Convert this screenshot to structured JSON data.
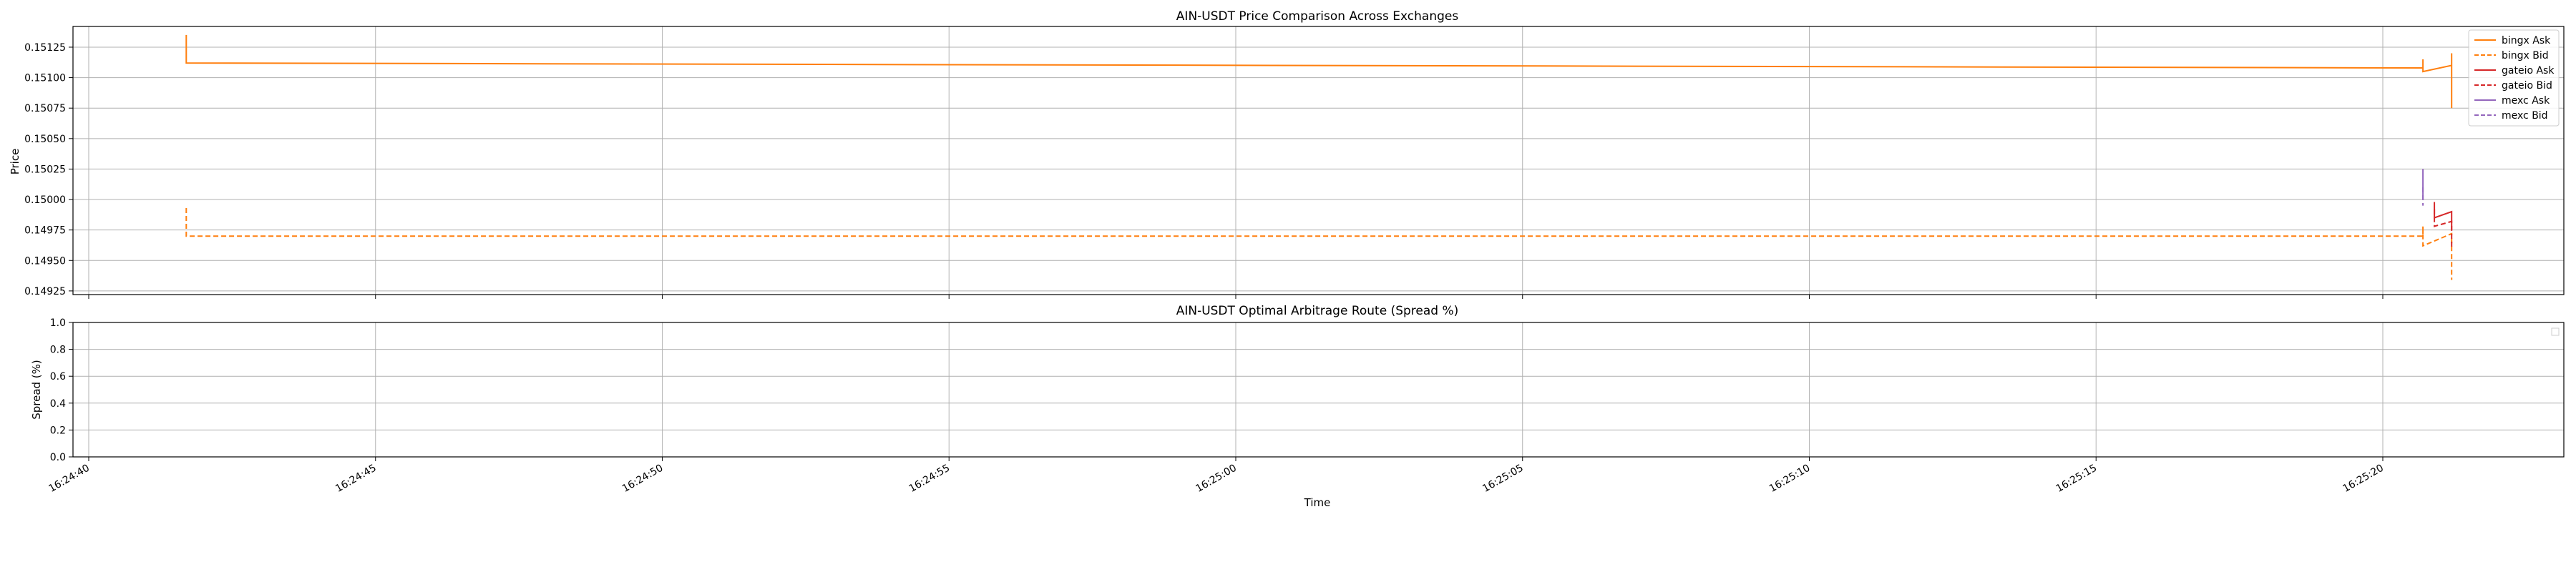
{
  "chart_data": [
    {
      "type": "line",
      "title": "AIN-USDT Price Comparison Across Exchanges",
      "xlabel": "",
      "ylabel": "Price",
      "grid": true,
      "legend_placement": "upper-right",
      "xlim": [
        "16:24:40",
        "16:25:24"
      ],
      "ylim": [
        0.14922,
        0.15142
      ],
      "yticks": [
        "0.14925",
        "0.14950",
        "0.14975",
        "0.15000",
        "0.15025",
        "0.15050",
        "0.15075",
        "0.15100",
        "0.15125"
      ],
      "series": [
        {
          "name": "bingx Ask",
          "color": "#ff7f0e",
          "dash": "solid",
          "x": [
            "16:24:41.7",
            "16:24:41.7",
            "16:24:41.7",
            "16:25:20.7",
            "16:25:20.7",
            "16:25:20.7",
            "16:25:21.2",
            "16:25:21.2",
            "16:25:21.2"
          ],
          "y": [
            0.15135,
            0.1512,
            0.15112,
            0.15108,
            0.15115,
            0.15105,
            0.1511,
            0.1512,
            0.15075
          ]
        },
        {
          "name": "bingx Bid",
          "color": "#ff7f0e",
          "dash": "dashed",
          "x": [
            "16:24:41.7",
            "16:24:41.7",
            "16:24:41.7",
            "16:25:20.7",
            "16:25:20.7",
            "16:25:20.7",
            "16:25:21.2",
            "16:25:21.2",
            "16:25:21.2"
          ],
          "y": [
            0.14993,
            0.1498,
            0.1497,
            0.1497,
            0.14978,
            0.14962,
            0.14972,
            0.1496,
            0.14934
          ]
        },
        {
          "name": "gateio Ask",
          "color": "#d62728",
          "dash": "solid",
          "x": [
            "16:25:20.9",
            "16:25:20.9",
            "16:25:21.2",
            "16:25:21.2"
          ],
          "y": [
            0.14998,
            0.14985,
            0.1499,
            0.14975
          ]
        },
        {
          "name": "gateio Bid",
          "color": "#d62728",
          "dash": "dashed",
          "x": [
            "16:25:20.9",
            "16:25:20.9",
            "16:25:21.2",
            "16:25:21.2"
          ],
          "y": [
            0.14992,
            0.14978,
            0.14982,
            0.1496
          ]
        },
        {
          "name": "mexc Ask",
          "color": "#9467bd",
          "dash": "solid",
          "x": [
            "16:25:20.7",
            "16:25:20.7"
          ],
          "y": [
            0.15025,
            0.15
          ]
        },
        {
          "name": "mexc Bid",
          "color": "#9467bd",
          "dash": "dashed",
          "x": [
            "16:25:20.7",
            "16:25:20.7"
          ],
          "y": [
            0.1501,
            0.14995
          ]
        }
      ]
    },
    {
      "type": "line",
      "title": "AIN-USDT Optimal Arbitrage Route (Spread %)",
      "xlabel": "Time",
      "ylabel": "Spread (%)",
      "grid": true,
      "legend_placement": "upper-right",
      "xlim": [
        "16:24:40",
        "16:25:24"
      ],
      "ylim": [
        0.0,
        1.0
      ],
      "yticks": [
        "0.0",
        "0.2",
        "0.4",
        "0.6",
        "0.8",
        "1.0"
      ],
      "xticks": [
        "16:24:40",
        "16:24:45",
        "16:24:50",
        "16:24:55",
        "16:25:00",
        "16:25:05",
        "16:25:10",
        "16:25:15",
        "16:25:20"
      ],
      "series": []
    }
  ]
}
